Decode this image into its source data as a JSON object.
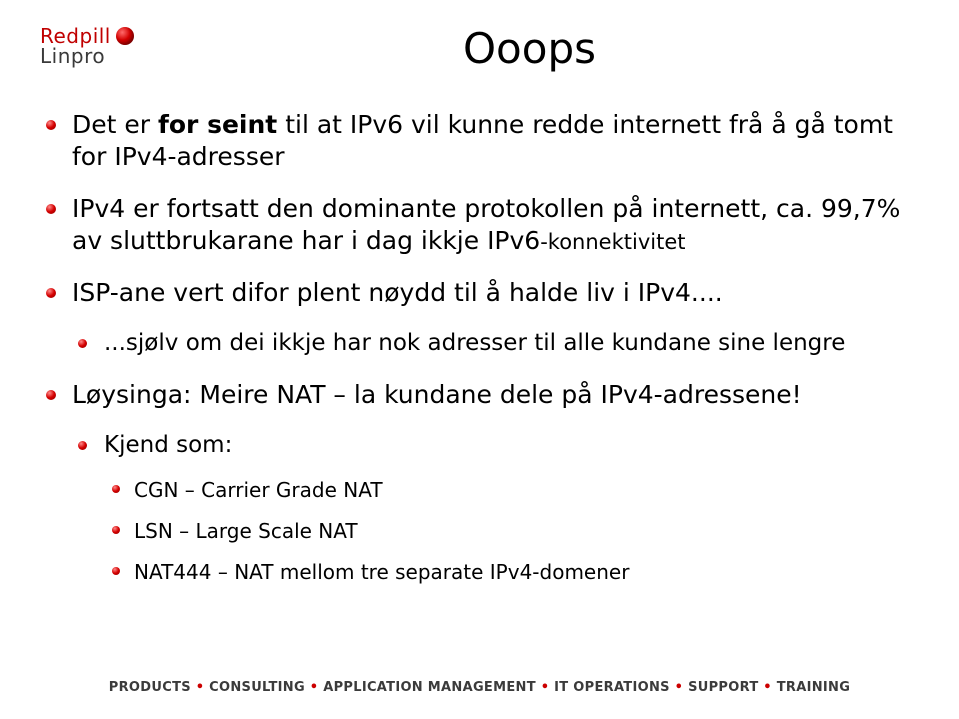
{
  "logo": {
    "line1": "Redpill",
    "line2": "Linpro"
  },
  "title": "Ooops",
  "bullets": [
    {
      "parts": [
        {
          "t": "Det er ",
          "b": false
        },
        {
          "t": "for seint",
          "b": true
        },
        {
          "t": " til at IPv6 vil kunne redde internett frå å gå tomt for IPv4-adresser",
          "b": false
        }
      ]
    },
    {
      "parts": [
        {
          "t": "IPv4 er fortsatt den dominante protokollen på internett, ca. 99,7% av sluttbrukarane har i dag ikkje IPv6",
          "b": false
        },
        {
          "t": "-konnektivitet",
          "b": false,
          "small": true
        }
      ]
    },
    {
      "parts": [
        {
          "t": "ISP-ane vert difor plent nøydd til å halde liv i IPv4....",
          "b": false
        }
      ],
      "children": [
        {
          "parts": [
            {
              "t": "...sjølv om dei ikkje har nok adresser til alle kundane sine lengre",
              "b": false
            }
          ]
        }
      ]
    },
    {
      "parts": [
        {
          "t": "Løysinga: Meire NAT – la kundane dele på IPv4-adressene!",
          "b": false
        }
      ],
      "children": [
        {
          "parts": [
            {
              "t": "Kjend som:",
              "b": false
            }
          ],
          "children": [
            {
              "parts": [
                {
                  "t": "CGN – Carrier Grade NAT",
                  "b": false
                }
              ]
            },
            {
              "parts": [
                {
                  "t": "LSN – Large Scale NAT",
                  "b": false
                }
              ]
            },
            {
              "parts": [
                {
                  "t": "NAT444 – NAT mellom tre separate IPv4-domener",
                  "b": false
                }
              ]
            }
          ]
        }
      ]
    }
  ],
  "footer": {
    "items": [
      "PRODUCTS",
      "CONSULTING",
      "APPLICATION MANAGEMENT",
      "IT OPERATIONS",
      "SUPPORT",
      "TRAINING"
    ],
    "sep": " • "
  },
  "colors": {
    "bullet": "#cc0000",
    "text": "#000000",
    "footer_text": "#3b3b3b",
    "footer_sep": "#cc0000"
  }
}
